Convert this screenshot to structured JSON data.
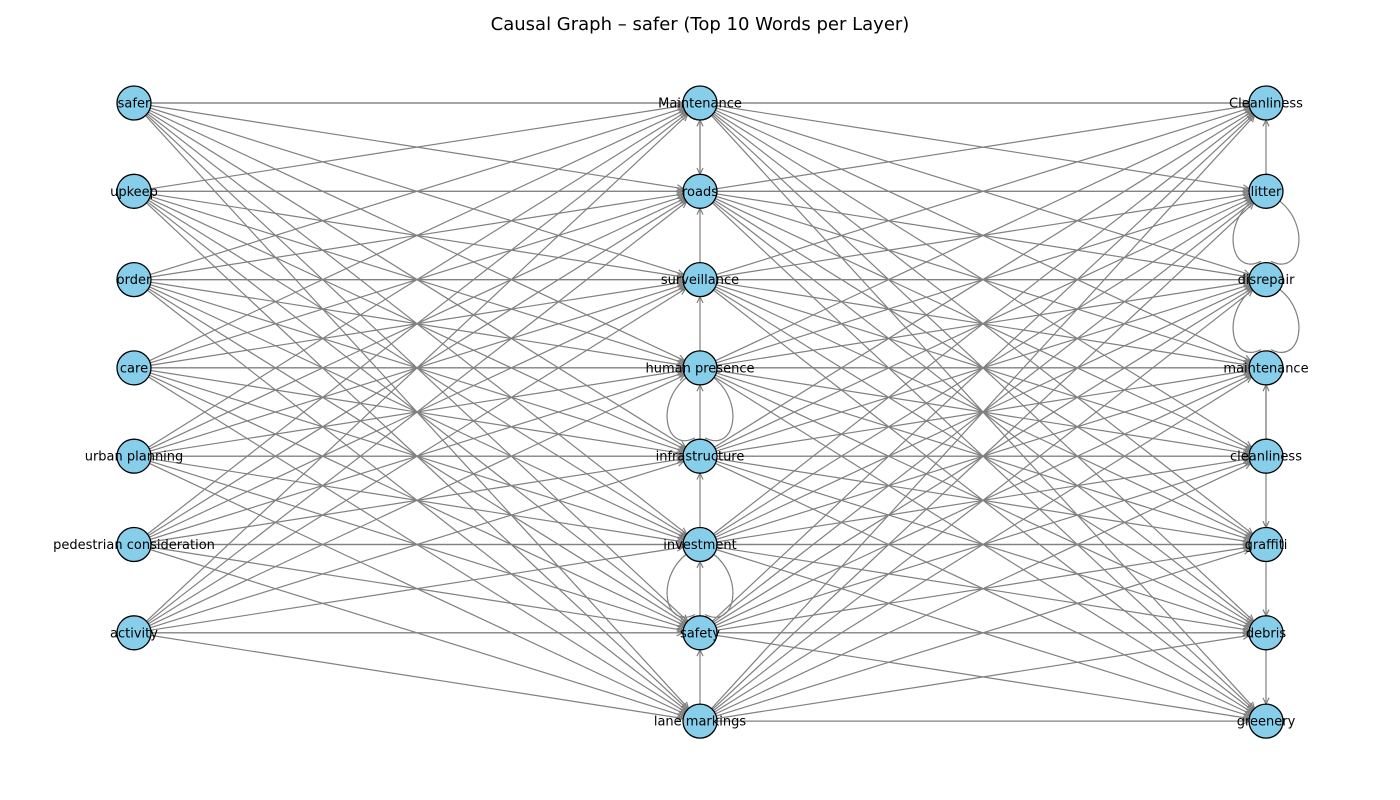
{
  "title": "Causal Graph – safer (Top 10 Words per Layer)",
  "colors": {
    "node_fill": "#87ceeb",
    "node_stroke": "#000000",
    "edge": "#808080"
  },
  "layers": [
    [
      "safer",
      "upkeep",
      "order",
      "care",
      "urban planning",
      "pedestrian consideration",
      "activity"
    ],
    [
      "Maintenance",
      "roads",
      "surveillance",
      "human presence",
      "infrastructure",
      "investment",
      "safety",
      "lane markings"
    ],
    [
      "Cleanliness",
      "litter",
      "disrepair",
      "maintenance",
      "cleanliness",
      "graffiti",
      "debris",
      "greenery"
    ]
  ],
  "edges": {
    "left_to_middle": "all",
    "middle_to_right": "all",
    "left_to_right_self_rows": true,
    "middle_chain": [
      [
        "roads",
        "Maintenance"
      ],
      [
        "surveillance",
        "roads"
      ],
      [
        "human presence",
        "surveillance"
      ],
      [
        "infrastructure",
        "human presence"
      ],
      [
        "investment",
        "infrastructure"
      ],
      [
        "safety",
        "investment"
      ],
      [
        "lane markings",
        "safety"
      ]
    ],
    "right_chain": [
      [
        "litter",
        "Cleanliness"
      ],
      [
        "cleanliness",
        "maintenance"
      ],
      [
        "maintenance",
        "graffiti"
      ],
      [
        "graffiti",
        "debris"
      ],
      [
        "debris",
        "greenery"
      ]
    ],
    "loops": [
      "human presence",
      "investment",
      "litter",
      "disrepair"
    ]
  }
}
